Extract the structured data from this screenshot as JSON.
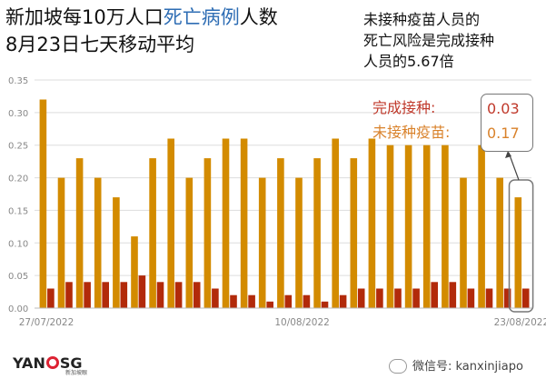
{
  "title": {
    "line1_prefix": "新加坡每10万人口",
    "line1_highlight": "死亡病例",
    "line1_suffix": "人数",
    "line2": "8月23日七天移动平均"
  },
  "note": {
    "line1": "未接种疫苗人员的",
    "line2": "死亡风险是完成接种",
    "line3": "人员的5.67倍"
  },
  "legend": {
    "vaccinated_label": "完成接种:",
    "vaccinated_value": "0.03",
    "unvaccinated_label": "未接种疫苗:",
    "unvaccinated_value": "0.17"
  },
  "logo": {
    "text": "YAN",
    "text2": "SG",
    "sub": "新加坡眼"
  },
  "wechat": {
    "text": "微信号: kanxinjiapo"
  },
  "colors": {
    "unvaccinated": "#d38b00",
    "vaccinated": "#b22a0a",
    "highlight": "#2e6db4"
  },
  "chart_data": {
    "type": "bar",
    "title": "新加坡每10万人口死亡病例人数 8月23日七天移动平均",
    "x_tick_labels": [
      "27/07/2022",
      "10/08/2022",
      "23/08/2022"
    ],
    "ylim": [
      0,
      0.35
    ],
    "y_ticks": [
      "0.00",
      "0.05",
      "0.10",
      "0.15",
      "0.20",
      "0.25",
      "0.30",
      "0.35"
    ],
    "grid": true,
    "series": [
      {
        "name": "未接种疫苗",
        "values": [
          0.32,
          0.2,
          0.23,
          0.2,
          0.17,
          0.11,
          0.23,
          0.26,
          0.2,
          0.23,
          0.26,
          0.26,
          0.2,
          0.23,
          0.2,
          0.23,
          0.26,
          0.23,
          0.26,
          0.25,
          0.25,
          0.25,
          0.25,
          0.2,
          0.25,
          0.2,
          0.17
        ]
      },
      {
        "name": "完成接种",
        "values": [
          0.03,
          0.04,
          0.04,
          0.04,
          0.04,
          0.05,
          0.04,
          0.04,
          0.04,
          0.03,
          0.02,
          0.02,
          0.01,
          0.02,
          0.02,
          0.01,
          0.02,
          0.03,
          0.03,
          0.03,
          0.03,
          0.04,
          0.04,
          0.03,
          0.03,
          0.03,
          0.03
        ]
      }
    ]
  }
}
